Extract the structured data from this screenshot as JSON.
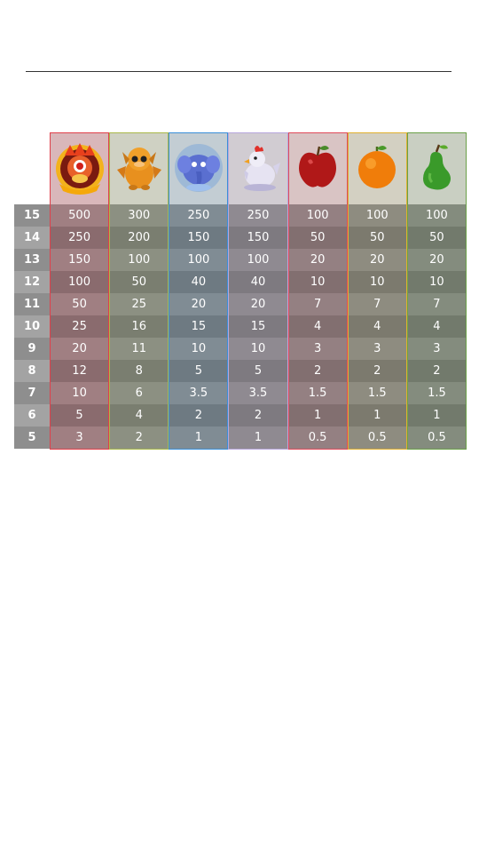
{
  "symbols": [
    {
      "icon": "red-dragon-icon",
      "border": "#e0404a",
      "head_bg": "#d9b7ba",
      "even": "#8a6b6e",
      "odd": "#a07f82"
    },
    {
      "icon": "orange-dragon-icon",
      "border": "#a9b84a",
      "head_bg": "#cfd1c3",
      "even": "#7a7e70",
      "odd": "#8c9082"
    },
    {
      "icon": "blue-elephant-icon",
      "border": "#3a8fd8",
      "head_bg": "#c3cdd3",
      "even": "#6e7a82",
      "odd": "#808c94"
    },
    {
      "icon": "white-chicken-icon",
      "border": "#b7a6dc",
      "head_bg": "#d1ccd2",
      "even": "#7e7a80",
      "odd": "#8f8a91"
    },
    {
      "icon": "apple-icon",
      "border": "#e04a5a",
      "head_bg": "#d9c4c4",
      "even": "#826f70",
      "odd": "#948082"
    },
    {
      "icon": "orange-icon",
      "border": "#e0b030",
      "head_bg": "#d3d0c2",
      "even": "#7c7a6e",
      "odd": "#8e8c80"
    },
    {
      "icon": "pear-icon",
      "border": "#6aa048",
      "head_bg": "#c9cfc2",
      "even": "#727a6c",
      "odd": "#848c7e"
    }
  ],
  "rows": [
    {
      "count": "15",
      "values": [
        "500",
        "300",
        "250",
        "250",
        "100",
        "100",
        "100"
      ]
    },
    {
      "count": "14",
      "values": [
        "250",
        "200",
        "150",
        "150",
        "50",
        "50",
        "50"
      ]
    },
    {
      "count": "13",
      "values": [
        "150",
        "100",
        "100",
        "100",
        "20",
        "20",
        "20"
      ]
    },
    {
      "count": "12",
      "values": [
        "100",
        "50",
        "40",
        "40",
        "10",
        "10",
        "10"
      ]
    },
    {
      "count": "11",
      "values": [
        "50",
        "25",
        "20",
        "20",
        "7",
        "7",
        "7"
      ]
    },
    {
      "count": "10",
      "values": [
        "25",
        "16",
        "15",
        "15",
        "4",
        "4",
        "4"
      ]
    },
    {
      "count": "9",
      "values": [
        "20",
        "11",
        "10",
        "10",
        "3",
        "3",
        "3"
      ]
    },
    {
      "count": "8",
      "values": [
        "12",
        "8",
        "5",
        "5",
        "2",
        "2",
        "2"
      ]
    },
    {
      "count": "7",
      "values": [
        "10",
        "6",
        "3.5",
        "3.5",
        "1.5",
        "1.5",
        "1.5"
      ]
    },
    {
      "count": "6",
      "values": [
        "5",
        "4",
        "2",
        "2",
        "1",
        "1",
        "1"
      ]
    },
    {
      "count": "5",
      "values": [
        "3",
        "2",
        "1",
        "1",
        "0.5",
        "0.5",
        "0.5"
      ]
    }
  ]
}
